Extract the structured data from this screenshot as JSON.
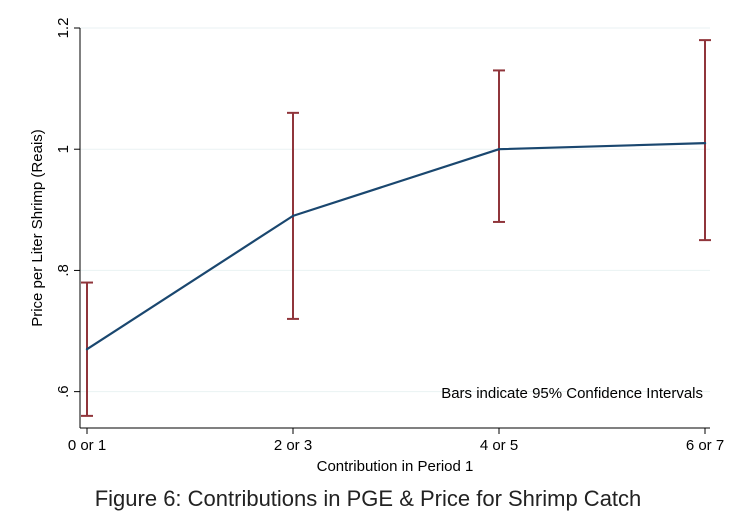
{
  "caption": "Figure 6: Contributions in PGE & Price for Shrimp Catch",
  "chart_data": {
    "type": "line",
    "categories": [
      "0 or 1",
      "2 or 3",
      "4 or 5",
      "6 or 7"
    ],
    "series": [
      {
        "values": [
          0.67,
          0.89,
          1.0,
          1.01
        ]
      }
    ],
    "ci_lower": [
      0.56,
      0.72,
      0.88,
      0.85
    ],
    "ci_upper": [
      0.78,
      1.06,
      1.13,
      1.18
    ],
    "xlabel": "Contribution in Period 1",
    "ylabel": "Price per Liter Shrimp (Reais)",
    "ylim": [
      0.54,
      1.2
    ],
    "yticks": [
      0.6,
      0.8,
      1.0,
      1.2
    ],
    "ytick_labels": [
      ".6",
      ".8",
      "1",
      "1.2"
    ],
    "annotation": "Bars indicate 95% Confidence Intervals",
    "grid": true,
    "colors": {
      "line": "#1a476f",
      "ci": "#90353b",
      "grid": "#eaf2f3",
      "axis": "#000000"
    }
  }
}
